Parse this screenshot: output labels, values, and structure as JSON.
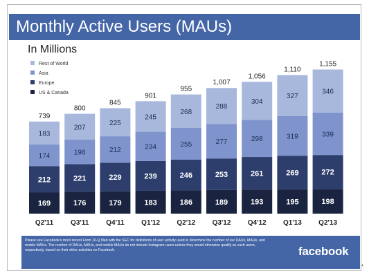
{
  "slide": {
    "title": "Monthly Active Users (MAUs)",
    "subtitle": "In Millions",
    "footnote": "Please see Facebook's most recent Form 10-Q filed with the SEC for definitions of user activity used to determine the number of our DAUs, MAUs, and mobile MAUs. The number of DAUs, MAUs, and mobile MAUs do not include Instagram users unless they would otherwise qualify as such users, respectively, based on their other activities on Facebook.",
    "logo": "facebook",
    "page_number": "4"
  },
  "colors": {
    "banner": "#4466a7",
    "rest_of_world": "#a8b8dd",
    "asia": "#7f94cd",
    "europe": "#2d3e6d",
    "us_canada": "#1a2440"
  },
  "chart_data": {
    "type": "bar",
    "stacked": true,
    "categories": [
      "Q2'11",
      "Q3'11",
      "Q4'11",
      "Q1'12",
      "Q2'12",
      "Q3'12",
      "Q4'12",
      "Q1'13",
      "Q2'13"
    ],
    "totals": [
      "739",
      "800",
      "845",
      "901",
      "955",
      "1,007",
      "1,056",
      "1,110",
      "1,155"
    ],
    "series": [
      {
        "name": "US & Canada",
        "color": "#1a2440",
        "values": [
          169,
          176,
          179,
          183,
          186,
          189,
          193,
          195,
          198
        ]
      },
      {
        "name": "Europe",
        "color": "#2d3e6d",
        "values": [
          212,
          221,
          229,
          239,
          246,
          253,
          261,
          269,
          272
        ]
      },
      {
        "name": "Asia",
        "color": "#7f94cd",
        "values": [
          174,
          196,
          212,
          234,
          255,
          277,
          298,
          319,
          339
        ]
      },
      {
        "name": "Rest of World",
        "color": "#a8b8dd",
        "values": [
          183,
          207,
          225,
          245,
          268,
          288,
          304,
          327,
          346
        ]
      }
    ],
    "legend_order": [
      "Rest of World",
      "Asia",
      "Europe",
      "US & Canada"
    ],
    "legend_position": "top-left",
    "grid": false,
    "ylim": [
      0,
      1200
    ]
  }
}
